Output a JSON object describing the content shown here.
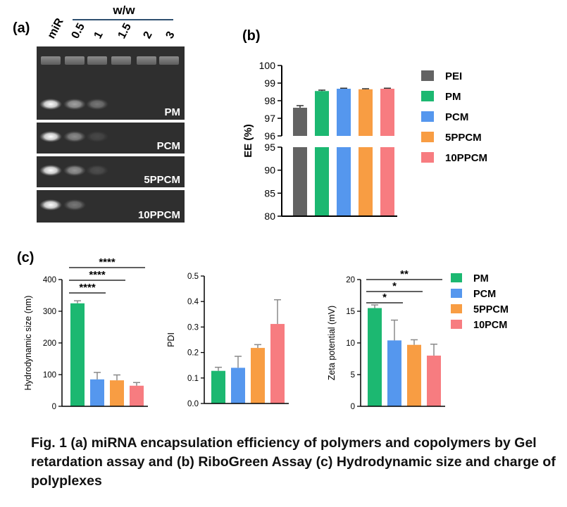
{
  "panel_a": {
    "label": "(a)",
    "ww_label": "w/w",
    "lane_labels": [
      "miR",
      "0.5",
      "1",
      "1.5",
      "2",
      "3"
    ],
    "gels": [
      {
        "name": "PM",
        "bands": [
          1.0,
          0.55,
          0.35,
          0,
          0,
          0
        ]
      },
      {
        "name": "PCM",
        "bands": [
          1.0,
          0.45,
          0.12,
          0,
          0,
          0
        ]
      },
      {
        "name": "5PPCM",
        "bands": [
          1.0,
          0.5,
          0.15,
          0,
          0,
          0
        ]
      },
      {
        "name": "10PPCM",
        "bands": [
          1.0,
          0.35,
          0,
          0,
          0,
          0
        ]
      }
    ]
  },
  "panel_b_label": "(b)",
  "panel_c_label": "(c)",
  "caption": "Fig. 1 (a) miRNA encapsulation efficiency of polymers and copolymers by Gel retardation assay and (b) RiboGreen Assay (c) Hydrodynamic size and charge of polyplexes",
  "colors": {
    "PEI": "#636363",
    "PM": "#1cb871",
    "PCM": "#5597ee",
    "5PPCM": "#f89d43",
    "10PPCM": "#f77c80"
  },
  "chart_data": [
    {
      "type": "bar",
      "panel": "b",
      "categories": [
        "PEI",
        "PM",
        "PCM",
        "5PPCM",
        "10PPCM"
      ],
      "values": [
        97.6,
        98.55,
        98.68,
        98.65,
        98.68
      ],
      "errors": [
        0.12,
        0.05,
        0.03,
        0.03,
        0.03
      ],
      "ylabel": "EE (%)",
      "ylim": [
        80,
        100
      ],
      "axis_break": [
        95,
        96
      ],
      "yticks_lower": [
        80,
        85,
        90,
        95
      ],
      "yticks_upper": [
        96,
        97,
        98,
        99,
        100
      ],
      "legend": [
        "PEI",
        "PM",
        "PCM",
        "5PPCM",
        "10PPCM"
      ],
      "legend_position": "right"
    },
    {
      "type": "bar",
      "panel": "c1",
      "categories": [
        "PM",
        "PCM",
        "5PPCM",
        "10PCM"
      ],
      "values": [
        325,
        85,
        82,
        65
      ],
      "errors": [
        8,
        22,
        17,
        10
      ],
      "ylabel": "Hydrodynamic size (nm)",
      "ylim": [
        0,
        400
      ],
      "yticks": [
        0,
        100,
        200,
        300,
        400
      ],
      "significance": [
        {
          "from": 0,
          "to": 1,
          "label": "****"
        },
        {
          "from": 0,
          "to": 2,
          "label": "****"
        },
        {
          "from": 0,
          "to": 3,
          "label": "****"
        }
      ]
    },
    {
      "type": "bar",
      "panel": "c2",
      "categories": [
        "PM",
        "PCM",
        "5PPCM",
        "10PCM"
      ],
      "values": [
        0.128,
        0.14,
        0.218,
        0.312
      ],
      "errors": [
        0.014,
        0.045,
        0.013,
        0.095
      ],
      "ylabel": "PDI",
      "ylim": [
        0,
        0.5
      ],
      "yticks": [
        "0.0",
        "0.1",
        "0.2",
        "0.3",
        "0.4",
        "0.5"
      ]
    },
    {
      "type": "bar",
      "panel": "c3",
      "categories": [
        "PM",
        "PCM",
        "5PPCM",
        "10PCM"
      ],
      "values": [
        15.5,
        10.4,
        9.7,
        8.0
      ],
      "errors": [
        0.5,
        3.2,
        0.8,
        1.8
      ],
      "ylabel": "Zeta potential (mV)",
      "ylim": [
        0,
        20
      ],
      "yticks": [
        0,
        5,
        10,
        15,
        20
      ],
      "significance": [
        {
          "from": 0,
          "to": 1,
          "label": "*"
        },
        {
          "from": 0,
          "to": 2,
          "label": "*"
        },
        {
          "from": 0,
          "to": 3,
          "label": "**"
        }
      ],
      "legend": [
        "PM",
        "PCM",
        "5PPCM",
        "10PCM"
      ],
      "legend_position": "right"
    }
  ]
}
